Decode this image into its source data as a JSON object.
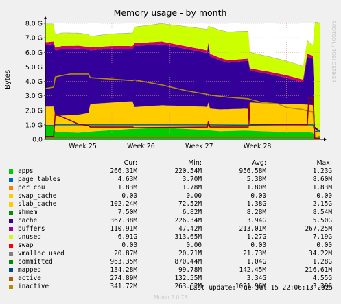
{
  "chart_data": {
    "type": "area",
    "title": "Memory usage - by month",
    "ylabel": "Bytes",
    "ylim": [
      0,
      8.0
    ],
    "ytick_labels": [
      "0.0",
      "1.0 G",
      "2.0 G",
      "3.0 G",
      "4.0 G",
      "5.0 G",
      "6.0 G",
      "7.0 G",
      "8.0 G"
    ],
    "ytick_values": [
      0,
      1,
      2,
      3,
      4,
      5,
      6,
      7,
      8
    ],
    "xtick_labels": [
      "Week 25",
      "Week 26",
      "Week 27",
      "Week 28"
    ],
    "xtick_days": [
      8,
      15,
      22,
      29
    ],
    "xlim_days": [
      0,
      33
    ],
    "grid": true,
    "watermark": "RRDTOOL / TOBI OETIKER",
    "stack_series": [
      {
        "name": "apps",
        "color": "#00cc00",
        "x": [
          0,
          1,
          1.2,
          4,
          6,
          10,
          14,
          19,
          21,
          24,
          26,
          29,
          31,
          32.2,
          32.4,
          33
        ],
        "y": [
          0.9,
          0.9,
          0.5,
          0.45,
          0.55,
          0.7,
          0.8,
          0.65,
          0.55,
          0.6,
          0.55,
          0.5,
          0.5,
          0.45,
          0.15,
          0.25
        ]
      },
      {
        "name": "page_tables",
        "color": "#0066b3",
        "x": [
          0,
          33
        ],
        "y": [
          0.006,
          0.006
        ]
      },
      {
        "name": "per_cpu",
        "color": "#ff8000",
        "x": [
          0,
          33
        ],
        "y": [
          0.002,
          0.002
        ]
      },
      {
        "name": "swap_cache",
        "color": "#ffcc00",
        "x": [
          0,
          33
        ],
        "y": [
          0,
          0
        ]
      },
      {
        "name": "slab_cache",
        "color": "#ffcc00",
        "x": [
          0,
          1,
          1.2,
          5.2,
          5.4,
          10.5,
          10.7,
          19.5,
          19.6,
          19.8,
          24.4,
          24.6,
          32.2,
          32.4,
          33
        ],
        "y": [
          1.35,
          1.35,
          1.1,
          1.3,
          1.9,
          1.9,
          1.5,
          1.6,
          2.0,
          1.5,
          1.5,
          1.95,
          1.9,
          0.55,
          0.25
        ]
      },
      {
        "name": "shmem",
        "color": "#330099",
        "x": [
          0,
          33
        ],
        "y": [
          0.008,
          0.008
        ]
      },
      {
        "name": "cache",
        "color": "#330099",
        "x": [
          0,
          1,
          1.2,
          2,
          4,
          5.2,
          5.4,
          8,
          10.5,
          10.7,
          14,
          19.5,
          19.6,
          19.8,
          22,
          24.4,
          24.6,
          27,
          29,
          31,
          31.5,
          32.2,
          32.4,
          33
        ],
        "y": [
          4.25,
          4.3,
          4.5,
          4.6,
          4.55,
          4.35,
          3.7,
          3.7,
          3.6,
          4.2,
          4.2,
          3.7,
          4.0,
          3.6,
          3.2,
          3.3,
          2.2,
          2.0,
          1.8,
          1.5,
          3.3,
          3.2,
          0.15,
          0.1
        ]
      },
      {
        "name": "buffers",
        "color": "#cc0066",
        "x": [
          0,
          1,
          1.2,
          5.2,
          5.4,
          10.5,
          10.7,
          19.5,
          19.6,
          19.8,
          24.4,
          24.6,
          31.5,
          32.2,
          32.4,
          33
        ],
        "y": [
          0.18,
          0.18,
          0.2,
          0.2,
          0.2,
          0.2,
          0.2,
          0.18,
          0.18,
          0.18,
          0.15,
          0.15,
          0.2,
          0.2,
          0.01,
          0.01
        ]
      },
      {
        "name": "unused",
        "color": "#ccff00",
        "x": [
          0,
          1,
          1.2,
          5.2,
          5.4,
          10.5,
          10.7,
          19.5,
          19.6,
          19.8,
          22,
          24.4,
          24.6,
          31.5,
          32.2,
          32.4,
          33
        ],
        "y": [
          1.25,
          1.2,
          0.9,
          0.85,
          0.75,
          0.9,
          1.1,
          1.45,
          1.0,
          1.85,
          1.95,
          1.9,
          1.1,
          0.9,
          0.7,
          7.2,
          7.4
        ]
      },
      {
        "name": "swap",
        "color": "#ff0000",
        "x": [
          0,
          33
        ],
        "y": [
          0,
          0
        ]
      },
      {
        "name": "vmalloc_used",
        "color": "#808080",
        "x": [
          0,
          33
        ],
        "y": [
          0.02,
          0.02
        ]
      }
    ],
    "line_series": [
      {
        "name": "committed",
        "color": "#005a8c",
        "x": [
          0,
          1,
          1.2,
          4,
          8,
          14,
          19,
          24,
          29,
          31,
          32.2,
          32.4,
          33
        ],
        "y": [
          0.95,
          0.95,
          1.0,
          1.0,
          1.0,
          1.0,
          1.0,
          0.98,
          1.0,
          1.0,
          1.0,
          0.5,
          0.6
        ]
      },
      {
        "name": "mapped",
        "color": "#b35a00",
        "x": [
          0,
          33
        ],
        "y": [
          0.14,
          0.14
        ]
      },
      {
        "name": "active",
        "color": "#b38f00",
        "x": [
          0,
          1,
          1.2,
          2,
          3,
          5.2,
          5.4,
          8,
          10.5,
          10.7,
          14,
          17,
          19.5,
          19.8,
          22,
          24.4,
          26,
          28,
          29,
          31,
          31.5,
          32.2,
          32.4,
          33
        ],
        "y": [
          3.5,
          3.6,
          4.3,
          4.4,
          4.5,
          4.5,
          4.25,
          4.15,
          4.05,
          4.1,
          3.75,
          3.35,
          3.1,
          3.05,
          2.9,
          2.8,
          2.55,
          2.45,
          2.2,
          2.05,
          1.95,
          1.9,
          0.05,
          0.05
        ]
      },
      {
        "name": "inactive",
        "color": "#8f0000",
        "x": [
          0,
          1,
          1.2,
          1.3,
          2,
          3,
          4,
          5.2,
          5.4,
          10.5,
          10.7,
          19.5,
          19.6,
          19.8,
          24.4,
          24.5,
          24.6,
          31.5,
          31.7,
          32.2,
          32.4,
          33
        ],
        "y": [
          0.2,
          0.2,
          1.8,
          1.7,
          1.55,
          1.3,
          1.05,
          0.95,
          0.85,
          0.85,
          0.8,
          0.85,
          1.2,
          0.85,
          0.85,
          2.45,
          1.05,
          1.0,
          2.9,
          2.8,
          0.05,
          0.05
        ]
      }
    ]
  },
  "legend": {
    "headers": {
      "cur": "Cur:",
      "min": "Min:",
      "avg": "Avg:",
      "max": "Max:"
    },
    "rows": [
      {
        "name": "apps",
        "color": "#00cc00",
        "cur": "266.31M",
        "min": "220.54M",
        "avg": "956.58M",
        "max": "1.23G"
      },
      {
        "name": "page_tables",
        "color": "#0066b3",
        "cur": "4.63M",
        "min": "3.70M",
        "avg": "5.38M",
        "max": "8.60M"
      },
      {
        "name": "per_cpu",
        "color": "#ff8000",
        "cur": "1.83M",
        "min": "1.78M",
        "avg": "1.80M",
        "max": "1.83M"
      },
      {
        "name": "swap_cache",
        "color": "#ffcc00",
        "cur": "0.00",
        "min": "0.00",
        "avg": "0.00",
        "max": "0.00"
      },
      {
        "name": "slab_cache",
        "color": "#ffcc00",
        "cur": "102.24M",
        "min": "72.52M",
        "avg": "1.38G",
        "max": "2.15G"
      },
      {
        "name": "shmem",
        "color": "#008f00",
        "cur": "7.50M",
        "min": "6.82M",
        "avg": "8.28M",
        "max": "8.54M"
      },
      {
        "name": "cache",
        "color": "#330099",
        "cur": "367.38M",
        "min": "226.34M",
        "avg": "3.94G",
        "max": "5.50G"
      },
      {
        "name": "buffers",
        "color": "#990099",
        "cur": "110.91M",
        "min": "47.42M",
        "avg": "213.01M",
        "max": "267.25M"
      },
      {
        "name": "unused",
        "color": "#ccff00",
        "cur": "6.91G",
        "min": "313.65M",
        "avg": "1.27G",
        "max": "7.19G"
      },
      {
        "name": "swap",
        "color": "#ff0000",
        "cur": "0.00",
        "min": "0.00",
        "avg": "0.00",
        "max": "0.00"
      },
      {
        "name": "vmalloc_used",
        "color": "#808080",
        "cur": "20.87M",
        "min": "20.71M",
        "avg": "21.73M",
        "max": "34.22M"
      },
      {
        "name": "committed",
        "color": "#008f00",
        "cur": "963.35M",
        "min": "870.44M",
        "avg": "1.04G",
        "max": "1.28G"
      },
      {
        "name": "mapped",
        "color": "#00487d",
        "cur": "134.28M",
        "min": "99.78M",
        "avg": "142.45M",
        "max": "216.61M"
      },
      {
        "name": "active",
        "color": "#b35a00",
        "cur": "274.89M",
        "min": "132.55M",
        "avg": "3.34G",
        "max": "4.55G"
      },
      {
        "name": "inactive",
        "color": "#b38f00",
        "cur": "341.72M",
        "min": "263.62M",
        "avg": "1021.96M",
        "max": "3.39G"
      }
    ]
  },
  "footer": {
    "last_update": "Last update:  Tue Jul 15 22:06:13 2025",
    "munin_version": "Munin 2.0.73"
  }
}
